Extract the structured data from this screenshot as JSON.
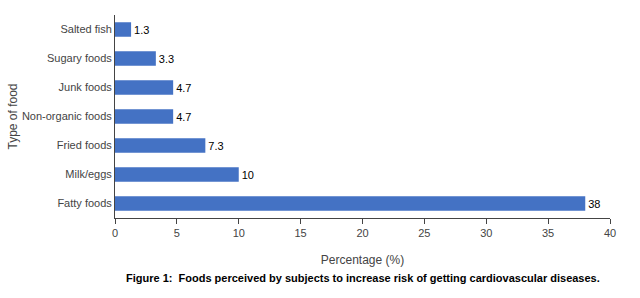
{
  "chart_data": {
    "type": "bar",
    "orientation": "horizontal",
    "categories": [
      "Salted fish",
      "Sugary foods",
      "Junk foods",
      "Non-organic foods",
      "Fried foods",
      "Milk/eggs",
      "Fatty foods"
    ],
    "values": [
      1.3,
      3.3,
      4.7,
      4.7,
      7.3,
      10,
      38
    ],
    "color": "#4472C4",
    "xlabel": "Percentage (%)",
    "ylabel": "Type of food",
    "xlim": [
      0,
      40
    ],
    "xticks": [
      0,
      5,
      10,
      15,
      20,
      25,
      30,
      35,
      40
    ],
    "data_labels": true,
    "grid": false,
    "caption": "Figure 1:  Foods perceived by subjects to increase risk of getting cardiovascular diseases."
  }
}
